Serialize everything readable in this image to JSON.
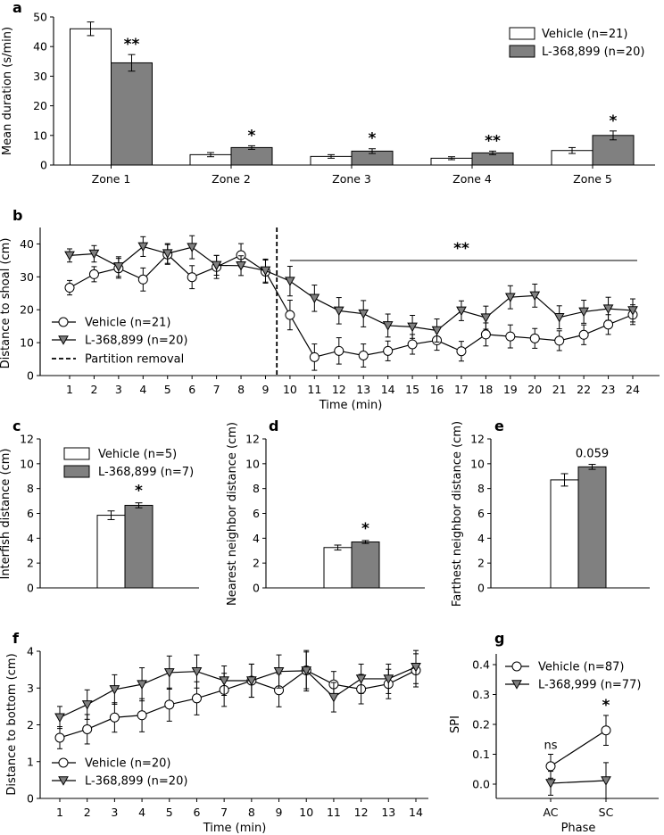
{
  "chart_data": [
    {
      "panel": "a",
      "type": "bar",
      "ylabel": "Mean duration (s/min)",
      "ylim": [
        0,
        50
      ],
      "yticks": [
        0,
        10,
        20,
        30,
        40,
        50
      ],
      "categories": [
        "Zone 1",
        "Zone 2",
        "Zone 3",
        "Zone 4",
        "Zone 5"
      ],
      "series": [
        {
          "name": "Vehicle (n=21)",
          "style": "white",
          "values": [
            46,
            3.5,
            2.9,
            2.3,
            4.9
          ],
          "errors": [
            2.3,
            0.7,
            0.6,
            0.5,
            1.0
          ]
        },
        {
          "name": "L-368,899 (n=20)",
          "style": "gray",
          "values": [
            34.5,
            5.9,
            4.7,
            4.1,
            10
          ],
          "errors": [
            2.8,
            0.6,
            0.8,
            0.6,
            1.5
          ]
        }
      ],
      "significance": [
        "**",
        "*",
        "*",
        "**",
        "*"
      ],
      "legend_position": "top-right"
    },
    {
      "panel": "b",
      "type": "line",
      "xlabel": "Time (min)",
      "ylabel": "Distance to shoal (cm)",
      "ylim": [
        0,
        45
      ],
      "yticks": [
        0,
        10,
        20,
        30,
        40
      ],
      "x": [
        1,
        2,
        3,
        4,
        5,
        6,
        7,
        8,
        9,
        10,
        11,
        12,
        13,
        14,
        15,
        16,
        17,
        18,
        19,
        20,
        21,
        22,
        23,
        24
      ],
      "series": [
        {
          "name": "Vehicle (n=21)",
          "marker": "circle",
          "values": [
            26.7,
            30.8,
            32.6,
            29.2,
            36.8,
            29.9,
            33.0,
            36.6,
            31.6,
            18.4,
            5.6,
            7.5,
            6.1,
            7.5,
            9.5,
            10.7,
            7.4,
            12.5,
            11.9,
            11.3,
            10.6,
            12.4,
            15.5,
            18.5
          ],
          "errors": [
            2.2,
            2.3,
            3.0,
            3.5,
            3.0,
            3.5,
            3.5,
            3.5,
            3.5,
            4.5,
            4.0,
            4.0,
            3.5,
            3.0,
            3.0,
            3.0,
            3.0,
            3.5,
            3.5,
            3.0,
            3.0,
            3.0,
            3.0,
            3.0
          ]
        },
        {
          "name": "L-368,899 (n=20)",
          "marker": "triangle-down",
          "values": [
            36.5,
            37.0,
            33.1,
            39.2,
            37.1,
            39.0,
            33.5,
            33.4,
            31.9,
            28.7,
            23.5,
            19.7,
            18.8,
            15.2,
            14.8,
            13.7,
            19.7,
            17.6,
            23.8,
            24.3,
            17.7,
            19.4,
            20.3,
            19.8
          ],
          "errors": [
            2.0,
            2.5,
            3.0,
            3.0,
            3.0,
            3.5,
            3.0,
            3.0,
            3.5,
            4.5,
            4.0,
            4.0,
            4.0,
            3.5,
            3.5,
            3.5,
            3.0,
            3.5,
            3.5,
            3.5,
            3.5,
            3.5,
            3.5,
            3.5
          ]
        }
      ],
      "partition_removal_x": 9.5,
      "significance_label": "**",
      "significance_range": [
        10,
        24
      ],
      "legend_entries": [
        "Vehicle (n=21)",
        "L-368,899 (n=20)",
        "Partition removal"
      ],
      "legend_position": "lower-left"
    },
    {
      "panel": "c",
      "type": "bar",
      "ylabel": "Interfish distance (cm)",
      "ylim": [
        0,
        12
      ],
      "yticks": [
        0,
        2,
        4,
        6,
        8,
        10,
        12
      ],
      "series": [
        {
          "name": "Vehicle (n=5)",
          "style": "white",
          "value": 5.85,
          "error": 0.35
        },
        {
          "name": "L-368,899 (n=7)",
          "style": "gray",
          "value": 6.65,
          "error": 0.2
        }
      ],
      "significance": "*"
    },
    {
      "panel": "d",
      "type": "bar",
      "ylabel": "Nearest neighbor distance (cm)",
      "ylim": [
        0,
        12
      ],
      "yticks": [
        0,
        2,
        4,
        6,
        8,
        10,
        12
      ],
      "series": [
        {
          "name": "Vehicle",
          "style": "white",
          "value": 3.25,
          "error": 0.2
        },
        {
          "name": "L-368,899",
          "style": "gray",
          "value": 3.7,
          "error": 0.12
        }
      ],
      "significance": "*"
    },
    {
      "panel": "e",
      "type": "bar",
      "ylabel": "Farthest neighbor distance (cm)",
      "ylim": [
        0,
        12
      ],
      "yticks": [
        0,
        2,
        4,
        6,
        8,
        10,
        12
      ],
      "series": [
        {
          "name": "Vehicle",
          "style": "white",
          "value": 8.7,
          "error": 0.5
        },
        {
          "name": "L-368,899",
          "style": "gray",
          "value": 9.75,
          "error": 0.2
        }
      ],
      "significance": "0.059"
    },
    {
      "panel": "f",
      "type": "line",
      "xlabel": "Time (min)",
      "ylabel": "Distance to bottom (cm)",
      "ylim": [
        0,
        4
      ],
      "yticks": [
        0,
        1,
        2,
        3,
        4
      ],
      "x": [
        1,
        2,
        3,
        4,
        5,
        6,
        7,
        8,
        9,
        10,
        11,
        12,
        13,
        14
      ],
      "series": [
        {
          "name": "Vehicle (n=20)",
          "marker": "circle",
          "values": [
            1.65,
            1.88,
            2.2,
            2.26,
            2.55,
            2.72,
            2.95,
            3.2,
            2.94,
            3.48,
            3.1,
            2.97,
            3.11,
            3.48
          ],
          "errors": [
            0.3,
            0.4,
            0.4,
            0.45,
            0.45,
            0.45,
            0.45,
            0.45,
            0.45,
            0.5,
            0.35,
            0.4,
            0.4,
            0.45
          ]
        },
        {
          "name": "L-368,899 (n=20)",
          "marker": "triangle-down",
          "values": [
            2.2,
            2.55,
            2.96,
            3.1,
            3.42,
            3.45,
            3.2,
            3.2,
            3.45,
            3.47,
            2.75,
            3.25,
            3.25,
            3.57
          ],
          "errors": [
            0.3,
            0.4,
            0.4,
            0.45,
            0.45,
            0.45,
            0.4,
            0.45,
            0.45,
            0.55,
            0.4,
            0.4,
            0.4,
            0.45
          ]
        }
      ],
      "legend_position": "lower-left"
    },
    {
      "panel": "g",
      "type": "line",
      "xlabel": "Phase",
      "ylabel": "SPI",
      "ylim": [
        -0.05,
        0.45
      ],
      "yticks": [
        0.0,
        0.1,
        0.2,
        0.3,
        0.4
      ],
      "ytick_labels": [
        "0.0",
        "0.1",
        "0.2",
        "0.3",
        "0.4"
      ],
      "categories": [
        "AC",
        "SC"
      ],
      "series": [
        {
          "name": "Vehicle (n=87)",
          "marker": "circle",
          "values": [
            0.06,
            0.18
          ],
          "errors": [
            0.04,
            0.05
          ]
        },
        {
          "name": "L-368,999 (n=77)",
          "marker": "triangle-down",
          "values": [
            0.003,
            0.012
          ],
          "errors": [
            0.04,
            0.06
          ]
        }
      ],
      "annotations": [
        "ns",
        "*"
      ],
      "legend_position": "top-left"
    }
  ]
}
